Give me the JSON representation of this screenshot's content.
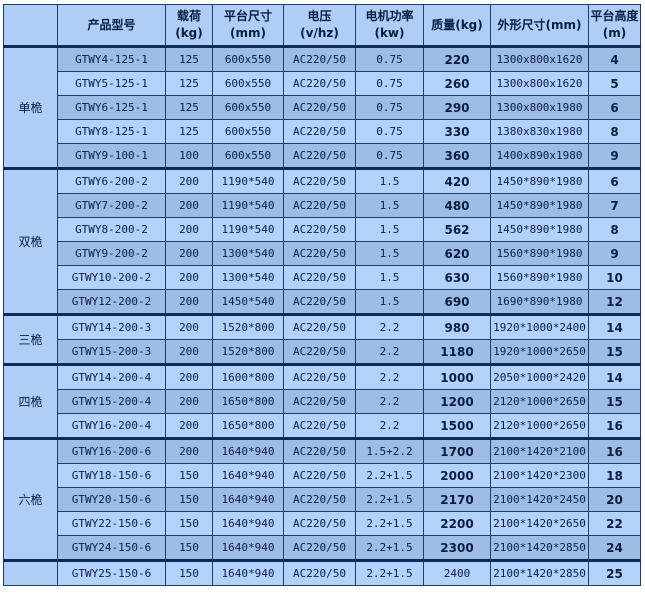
{
  "headers": [
    {
      "l1": "",
      "l2": ""
    },
    {
      "l1": "产品型号",
      "l2": ""
    },
    {
      "l1": "载荷",
      "l2": "(kg)"
    },
    {
      "l1": "平台尺寸",
      "l2": "(mm)"
    },
    {
      "l1": "电压",
      "l2": "(v/hz)"
    },
    {
      "l1": "电机功率",
      "l2": "(kw)"
    },
    {
      "l1": "质量(kg)",
      "l2": ""
    },
    {
      "l1": "外形尺寸(mm)",
      "l2": ""
    },
    {
      "l1": "平台高度",
      "l2": "(m)"
    }
  ],
  "groups": [
    {
      "name": "单桅",
      "rows": [
        [
          "GTWY4-125-1",
          "125",
          "600x550",
          "AC220/50",
          "0.75",
          "220",
          "1300x800x1620",
          "4"
        ],
        [
          "GTWY5-125-1",
          "125",
          "600x550",
          "AC220/50",
          "0.75",
          "260",
          "1300x800x1620",
          "5"
        ],
        [
          "GTWY6-125-1",
          "125",
          "600x550",
          "AC220/50",
          "0.75",
          "290",
          "1300x800x1980",
          "6"
        ],
        [
          "GTWY8-125-1",
          "125",
          "600x550",
          "AC220/50",
          "0.75",
          "330",
          "1380x830x1980",
          "8"
        ],
        [
          "GTWY9-100-1",
          "100",
          "600x550",
          "AC220/50",
          "0.75",
          "360",
          "1400x890x1980",
          "9"
        ]
      ]
    },
    {
      "name": "双桅",
      "rows": [
        [
          "GTWY6-200-2",
          "200",
          "1190*540",
          "AC220/50",
          "1.5",
          "420",
          "1450*890*1980",
          "6"
        ],
        [
          "GTWY7-200-2",
          "200",
          "1190*540",
          "AC220/50",
          "1.5",
          "480",
          "1450*890*1980",
          "7"
        ],
        [
          "GTWY8-200-2",
          "200",
          "1190*540",
          "AC220/50",
          "1.5",
          "562",
          "1450*890*1980",
          "8"
        ],
        [
          "GTWY9-200-2",
          "200",
          "1300*540",
          "AC220/50",
          "1.5",
          "620",
          "1560*890*1980",
          "9"
        ],
        [
          "GTWY10-200-2",
          "200",
          "1300*540",
          "AC220/50",
          "1.5",
          "630",
          "1560*890*1980",
          "10"
        ],
        [
          "GTWY12-200-2",
          "200",
          "1450*540",
          "AC220/50",
          "1.5",
          "690",
          "1690*890*1980",
          "12"
        ]
      ]
    },
    {
      "name": "三桅",
      "rows": [
        [
          "GTWY14-200-3",
          "200",
          "1520*800",
          "AC220/50",
          "2.2",
          "980",
          "1920*1000*2400",
          "14"
        ],
        [
          "GTWY15-200-3",
          "200",
          "1520*800",
          "AC220/50",
          "2.2",
          "1180",
          "1920*1000*2650",
          "15"
        ]
      ]
    },
    {
      "name": "四桅",
      "rows": [
        [
          "GTWY14-200-4",
          "200",
          "1600*800",
          "AC220/50",
          "2.2",
          "1000",
          "2050*1000*2420",
          "14"
        ],
        [
          "GTWY15-200-4",
          "200",
          "1650*800",
          "AC220/50",
          "2.2",
          "1200",
          "2120*1000*2650",
          "15"
        ],
        [
          "GTWY16-200-4",
          "200",
          "1650*800",
          "AC220/50",
          "2.2",
          "1500",
          "2120*1000*2650",
          "16"
        ]
      ]
    },
    {
      "name": "六桅",
      "rows": [
        [
          "GTWY16-200-6",
          "200",
          "1640*940",
          "AC220/50",
          "1.5+2.2",
          "1700",
          "2100*1420*2100",
          "16"
        ],
        [
          "GTWY18-150-6",
          "150",
          "1640*940",
          "AC220/50",
          "2.2+1.5",
          "2000",
          "2100*1420*2300",
          "18"
        ],
        [
          "GTWY20-150-6",
          "150",
          "1640*940",
          "AC220/50",
          "2.2+1.5",
          "2170",
          "2100*1420*2450",
          "20"
        ],
        [
          "GTWY22-150-6",
          "150",
          "1640*940",
          "AC220/50",
          "2.2+1.5",
          "2200",
          "2100*1420*2650",
          "22"
        ],
        [
          "GTWY24-150-6",
          "150",
          "1640*940",
          "AC220/50",
          "2.2+1.5",
          "2300",
          "2100*1420*2850",
          "24"
        ]
      ]
    },
    {
      "name": "",
      "rows": [
        [
          "GTWY25-150-6",
          "150",
          "1640*940",
          "AC220/50",
          "2.2+1.5",
          "2400",
          "2100*1420*2850",
          "25"
        ]
      ]
    }
  ]
}
